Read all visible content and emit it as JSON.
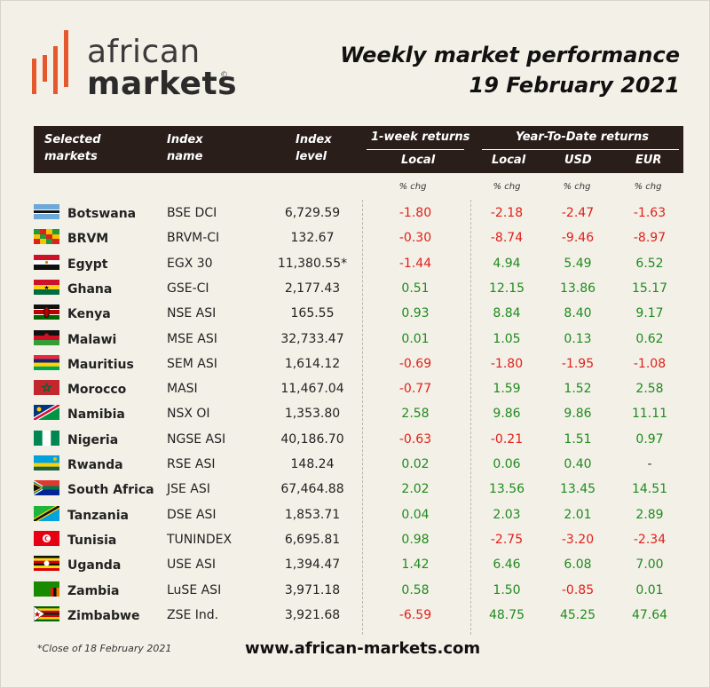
{
  "brand": {
    "line1": "african",
    "line2": "markets",
    "reg": "©"
  },
  "title": {
    "line1": "Weekly market performance",
    "line2": "19 February 2021"
  },
  "header": {
    "col_country": [
      "Selected",
      "markets"
    ],
    "col_index": [
      "Index",
      "name"
    ],
    "col_level": [
      "Index",
      "level"
    ],
    "week_group": "1-week returns",
    "ytd_group": "Year-To-Date returns",
    "week_local": "Local",
    "ytd_local": "Local",
    "ytd_usd": "USD",
    "ytd_eur": "EUR"
  },
  "units": {
    "week_local": "% chg",
    "ytd_local": "% chg",
    "ytd_usd": "% chg",
    "ytd_eur": "% chg"
  },
  "rows": [
    {
      "country": "Botswana",
      "index": "BSE DCI",
      "level": "6,729.59",
      "week": "-1.80",
      "ytd_local": "-2.18",
      "ytd_usd": "-2.47",
      "ytd_eur": "-1.63"
    },
    {
      "country": "BRVM",
      "index": "BRVM-CI",
      "level": "132.67",
      "week": "-0.30",
      "ytd_local": "-8.74",
      "ytd_usd": "-9.46",
      "ytd_eur": "-8.97"
    },
    {
      "country": "Egypt",
      "index": "EGX 30",
      "level": "11,380.55*",
      "week": "-1.44",
      "ytd_local": "4.94",
      "ytd_usd": "5.49",
      "ytd_eur": "6.52"
    },
    {
      "country": "Ghana",
      "index": "GSE-CI",
      "level": "2,177.43",
      "week": "0.51",
      "ytd_local": "12.15",
      "ytd_usd": "13.86",
      "ytd_eur": "15.17"
    },
    {
      "country": "Kenya",
      "index": "NSE ASI",
      "level": "165.55",
      "week": "0.93",
      "ytd_local": "8.84",
      "ytd_usd": "8.40",
      "ytd_eur": "9.17"
    },
    {
      "country": "Malawi",
      "index": "MSE ASI",
      "level": "32,733.47",
      "week": "0.01",
      "ytd_local": "1.05",
      "ytd_usd": "0.13",
      "ytd_eur": "0.62"
    },
    {
      "country": "Mauritius",
      "index": "SEM ASI",
      "level": "1,614.12",
      "week": "-0.69",
      "ytd_local": "-1.80",
      "ytd_usd": "-1.95",
      "ytd_eur": "-1.08"
    },
    {
      "country": "Morocco",
      "index": "MASI",
      "level": "11,467.04",
      "week": "-0.77",
      "ytd_local": "1.59",
      "ytd_usd": "1.52",
      "ytd_eur": "2.58"
    },
    {
      "country": "Namibia",
      "index": "NSX OI",
      "level": "1,353.80",
      "week": "2.58",
      "ytd_local": "9.86",
      "ytd_usd": "9.86",
      "ytd_eur": "11.11"
    },
    {
      "country": "Nigeria",
      "index": "NGSE ASI",
      "level": "40,186.70",
      "week": "-0.63",
      "ytd_local": "-0.21",
      "ytd_usd": "1.51",
      "ytd_eur": "0.97"
    },
    {
      "country": "Rwanda",
      "index": "RSE ASI",
      "level": "148.24",
      "week": "0.02",
      "ytd_local": "0.06",
      "ytd_usd": "0.40",
      "ytd_eur": "-"
    },
    {
      "country": "South Africa",
      "index": "JSE ASI",
      "level": "67,464.88",
      "week": "2.02",
      "ytd_local": "13.56",
      "ytd_usd": "13.45",
      "ytd_eur": "14.51"
    },
    {
      "country": "Tanzania",
      "index": "DSE ASI",
      "level": "1,853.71",
      "week": "0.04",
      "ytd_local": "2.03",
      "ytd_usd": "2.01",
      "ytd_eur": "2.89"
    },
    {
      "country": "Tunisia",
      "index": "TUNINDEX",
      "level": "6,695.81",
      "week": "0.98",
      "ytd_local": "-2.75",
      "ytd_usd": "-3.20",
      "ytd_eur": "-2.34"
    },
    {
      "country": "Uganda",
      "index": "USE ASI",
      "level": "1,394.47",
      "week": "1.42",
      "ytd_local": "6.46",
      "ytd_usd": "6.08",
      "ytd_eur": "7.00"
    },
    {
      "country": "Zambia",
      "index": "LuSE ASI",
      "level": "3,971.18",
      "week": "0.58",
      "ytd_local": "1.50",
      "ytd_usd": "-0.85",
      "ytd_eur": "0.01"
    },
    {
      "country": "Zimbabwe",
      "index": "ZSE Ind.",
      "level": "3,921.68",
      "week": "-6.59",
      "ytd_local": "48.75",
      "ytd_usd": "45.25",
      "ytd_eur": "47.64"
    }
  ],
  "footer": {
    "note": "*Close of 18 February 2021",
    "url": "www.african-markets.com"
  }
}
